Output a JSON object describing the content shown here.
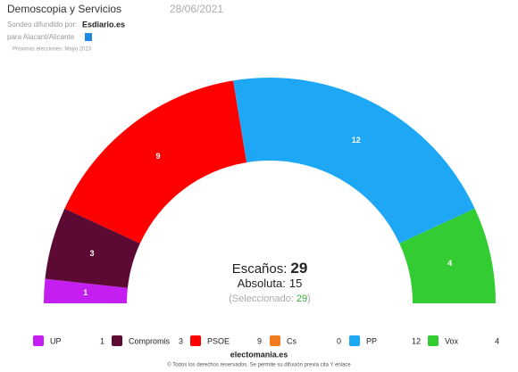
{
  "chart_data": {
    "type": "semicircle",
    "title": "Demoscopia y Servicios",
    "date": "28/06/2021",
    "source_label": "Sondeo difundido por:",
    "source": "Esdiario.es",
    "region": "para Alacant/Alicante",
    "next_election": "Próximas elecciones: Mayo 2023",
    "categories": [
      "UP",
      "Compromis",
      "PSOE",
      "Cs",
      "PP",
      "Vox"
    ],
    "values": [
      1,
      3,
      9,
      0,
      12,
      4
    ],
    "colors": [
      "#c41ef0",
      "#5c0a34",
      "#ff0000",
      "#f07b1e",
      "#1ea7f5",
      "#33cc33"
    ],
    "seats_label": "Escaños:",
    "total": 29,
    "majority_label": "Absoluta:",
    "majority": 15,
    "selected_label": "(Seleccionado:",
    "selected": 29,
    "selected_close": ")",
    "footer_brand": "electomania.es",
    "footer_note": "© Todos los derechos reservados. Se permite su difusión previa cita Y enlace"
  }
}
